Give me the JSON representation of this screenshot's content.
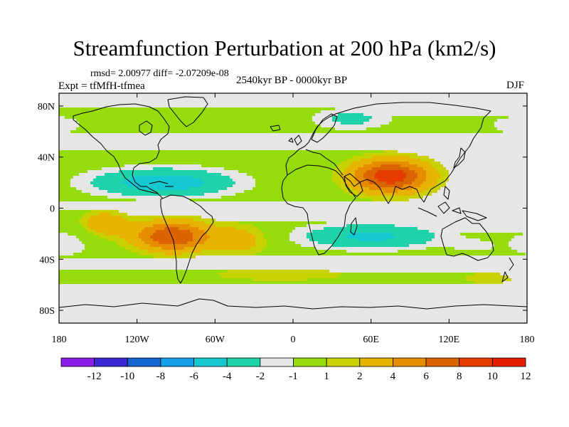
{
  "title": "Streamfunction Perturbation at 200 hPa (km2/s)",
  "stats": "rmsd= 2.00977 diff= -2.07209e-08",
  "experiment": "Expt = tfMfH-tfmea",
  "period": "2540kyr BP - 0000kyr BP",
  "season": "DJF",
  "lat_ticks": [
    {
      "label": "80N",
      "lat": 80
    },
    {
      "label": "40N",
      "lat": 40
    },
    {
      "label": "0",
      "lat": 0
    },
    {
      "label": "40S",
      "lat": -40
    },
    {
      "label": "80S",
      "lat": -80
    }
  ],
  "lon_ticks": [
    {
      "label": "180",
      "lon": -180
    },
    {
      "label": "120W",
      "lon": -120
    },
    {
      "label": "60W",
      "lon": -60
    },
    {
      "label": "0",
      "lon": 0
    },
    {
      "label": "60E",
      "lon": 60
    },
    {
      "label": "120E",
      "lon": 120
    },
    {
      "label": "180",
      "lon": 180
    }
  ],
  "colorbar": {
    "colors": [
      "#8b1ee6",
      "#3c28d2",
      "#1464d2",
      "#14a0e6",
      "#14c8d2",
      "#1ed2aa",
      "#e6e6e6",
      "#96dc0a",
      "#c8d200",
      "#e6b400",
      "#e68c00",
      "#dc6400",
      "#e63c00",
      "#e61e00"
    ],
    "labels": [
      "-12",
      "-10",
      "-8",
      "-6",
      "-4",
      "-2",
      "-1",
      "1",
      "2",
      "4",
      "6",
      "8",
      "10",
      "12"
    ]
  },
  "chart_data": {
    "type": "contour_map",
    "variable": "Streamfunction perturbation at 200 hPa",
    "units": "km2/s",
    "projection": "cylindrical equidistant",
    "lon_range": [
      -180,
      180
    ],
    "lat_range": [
      -90,
      90
    ],
    "levels": [
      -12,
      -10,
      -8,
      -6,
      -4,
      -2,
      -1,
      1,
      2,
      4,
      6,
      8,
      10,
      12
    ],
    "anomalies": [
      {
        "lon": 75,
        "lat": 25,
        "slon": 30,
        "slat": 13,
        "amp": 9.5
      },
      {
        "lon": -93,
        "lat": -22,
        "slon": 30,
        "slat": 12,
        "amp": 8
      },
      {
        "lon": -145,
        "lat": -12,
        "slon": 18,
        "slat": 10,
        "amp": 3.5
      },
      {
        "lon": -40,
        "lat": -25,
        "slon": 22,
        "slat": 12,
        "amp": 3
      },
      {
        "lon": -100,
        "lat": 20,
        "slon": 55,
        "slat": 11,
        "amp": -5.5
      },
      {
        "lon": 60,
        "lat": -22,
        "slon": 55,
        "slat": 10,
        "amp": -4.5
      },
      {
        "lon": 45,
        "lat": 70,
        "slon": 32,
        "slat": 9,
        "amp": -2.5
      },
      {
        "lon": 175,
        "lat": 65,
        "slon": 30,
        "slat": 10,
        "amp": -1.6
      },
      {
        "lon": -175,
        "lat": -28,
        "slon": 22,
        "slat": 12,
        "amp": -1.7
      },
      {
        "lon": -10,
        "lat": -52,
        "slon": 75,
        "slat": 7,
        "amp": 1.5
      },
      {
        "lon": 150,
        "lat": -55,
        "slon": 30,
        "slat": 7,
        "amp": 1.4
      },
      {
        "lon": 140,
        "lat": -30,
        "slon": 18,
        "slat": 6,
        "amp": -1.2
      }
    ]
  }
}
